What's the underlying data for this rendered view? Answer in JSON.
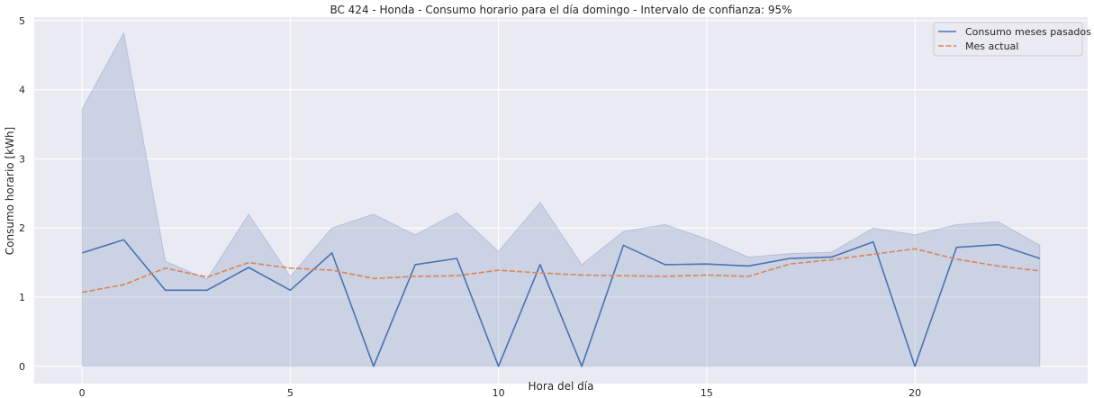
{
  "chart_data": {
    "type": "line",
    "title": "BC 424 - Honda - Consumo horario para el día domingo - Intervalo de confianza: 95%",
    "xlabel": "Hora del día",
    "ylabel": "Consumo horario [kWh]",
    "xlim": [
      -1.15,
      24.15
    ],
    "ylim": [
      -0.25,
      5.05
    ],
    "xticks": [
      0,
      5,
      10,
      15,
      20
    ],
    "yticks": [
      0,
      1,
      2,
      3,
      4,
      5
    ],
    "grid": true,
    "legend_position": "top-right",
    "x": [
      0,
      1,
      2,
      3,
      4,
      5,
      6,
      7,
      8,
      9,
      10,
      11,
      12,
      13,
      14,
      15,
      16,
      17,
      18,
      19,
      20,
      21,
      22,
      23
    ],
    "series": [
      {
        "name": "Consumo meses pasados",
        "color": "#4c72b0",
        "style": "solid",
        "values": [
          1.64,
          1.83,
          1.1,
          1.1,
          1.43,
          1.1,
          1.64,
          0.0,
          1.47,
          1.56,
          0.0,
          1.47,
          0.0,
          1.75,
          1.47,
          1.48,
          1.45,
          1.56,
          1.58,
          1.8,
          0.0,
          1.72,
          1.76,
          1.56
        ]
      },
      {
        "name": "Mes actual",
        "color": "#dd8452",
        "style": "dashed",
        "values": [
          1.07,
          1.18,
          1.42,
          1.29,
          1.5,
          1.42,
          1.39,
          1.27,
          1.3,
          1.31,
          1.39,
          1.35,
          1.32,
          1.31,
          1.3,
          1.32,
          1.3,
          1.48,
          1.54,
          1.62,
          1.7,
          1.55,
          1.45,
          1.38
        ]
      }
    ],
    "confidence_band": {
      "series": "Consumo meses pasados",
      "color": "#4c72b0",
      "lower": [
        0,
        0,
        0,
        0,
        0,
        0,
        0,
        0,
        0,
        0,
        0,
        0,
        0,
        0,
        0,
        0,
        0,
        0,
        0,
        0,
        0,
        0,
        0,
        0
      ],
      "upper": [
        3.72,
        4.82,
        1.52,
        1.26,
        2.2,
        1.3,
        2.0,
        2.2,
        1.9,
        2.22,
        1.66,
        2.37,
        1.47,
        1.95,
        2.05,
        1.84,
        1.58,
        1.63,
        1.65,
        2.0,
        1.9,
        2.05,
        2.09,
        1.75
      ]
    }
  }
}
